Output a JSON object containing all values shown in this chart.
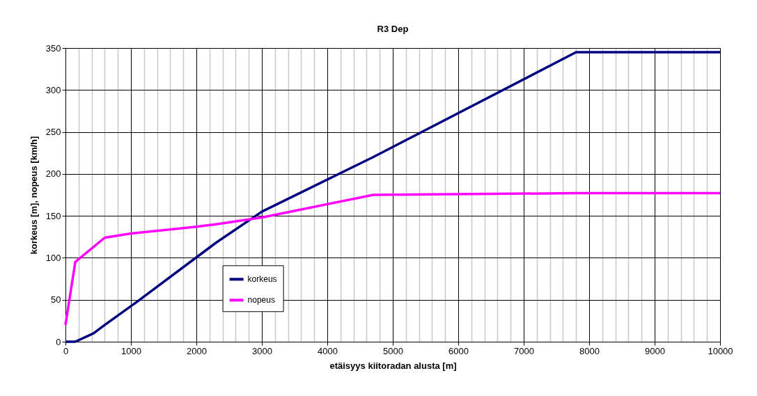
{
  "chart_data": {
    "type": "line",
    "title": "R3 Dep",
    "xlabel": "etäisyys kiitoradan alusta [m]",
    "ylabel": "korkeus [m], nopeus [km/h]",
    "xlim": [
      0,
      10000
    ],
    "xticks": [
      0,
      1000,
      2000,
      3000,
      4000,
      5000,
      6000,
      7000,
      8000,
      9000,
      10000
    ],
    "ylim": [
      0,
      350
    ],
    "yticks": [
      0,
      50,
      100,
      150,
      200,
      250,
      300,
      350
    ],
    "grid": true,
    "legend": "bottom left",
    "marker": "none",
    "line_style": "solid",
    "series": [
      {
        "name": "korkeus",
        "color": "#000080",
        "x": [
          0,
          150,
          430,
          600,
          1100,
          2300,
          3000,
          4700,
          7800,
          10000
        ],
        "values": [
          0,
          0,
          10,
          20,
          48,
          118,
          155,
          220,
          345,
          345
        ]
      },
      {
        "name": "nopeus",
        "color": "#ff00ff",
        "x": [
          0,
          150,
          600,
          1000,
          2000,
          2300,
          3000,
          4700,
          7800,
          10000
        ],
        "values": [
          20,
          95,
          124,
          129,
          137,
          140,
          148,
          175,
          177,
          177
        ]
      }
    ]
  }
}
